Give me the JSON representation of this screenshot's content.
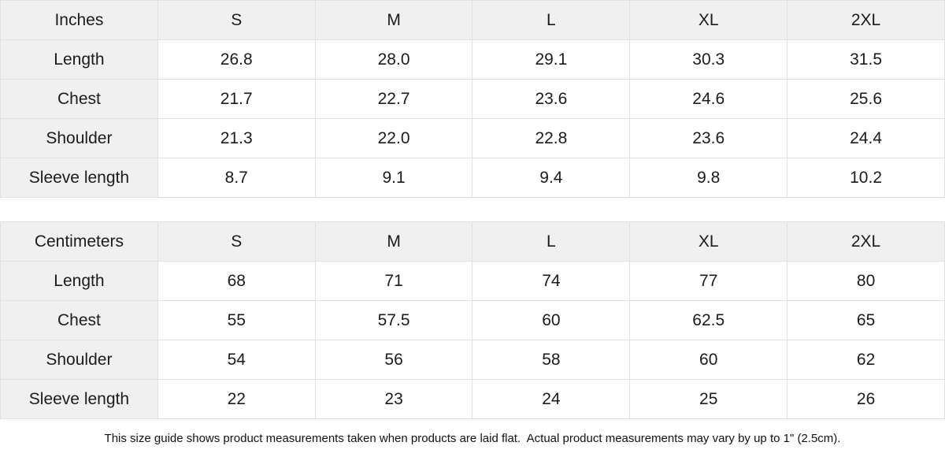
{
  "colors": {
    "header_bg": "#f0f0f0",
    "border": "#e0e0e0",
    "cell_bg": "#ffffff",
    "text": "#1b1b1b"
  },
  "size_chart": {
    "sizes": [
      "S",
      "M",
      "L",
      "XL",
      "2XL"
    ],
    "tables": [
      {
        "unit_label": "Inches",
        "rows": [
          {
            "label": "Length",
            "values": [
              "26.8",
              "28.0",
              "29.1",
              "30.3",
              "31.5"
            ]
          },
          {
            "label": "Chest",
            "values": [
              "21.7",
              "22.7",
              "23.6",
              "24.6",
              "25.6"
            ]
          },
          {
            "label": "Shoulder",
            "values": [
              "21.3",
              "22.0",
              "22.8",
              "23.6",
              "24.4"
            ]
          },
          {
            "label": "Sleeve length",
            "values": [
              "8.7",
              "9.1",
              "9.4",
              "9.8",
              "10.2"
            ]
          }
        ]
      },
      {
        "unit_label": "Centimeters",
        "rows": [
          {
            "label": "Length",
            "values": [
              "68",
              "71",
              "74",
              "77",
              "80"
            ]
          },
          {
            "label": "Chest",
            "values": [
              "55",
              "57.5",
              "60",
              "62.5",
              "65"
            ]
          },
          {
            "label": "Shoulder",
            "values": [
              "54",
              "56",
              "58",
              "60",
              "62"
            ]
          },
          {
            "label": "Sleeve length",
            "values": [
              "22",
              "23",
              "24",
              "25",
              "26"
            ]
          }
        ]
      }
    ]
  },
  "footer": {
    "note": "This size guide shows product measurements taken when products are laid flat.  Actual product measurements may vary by up to 1\" (2.5cm)."
  }
}
